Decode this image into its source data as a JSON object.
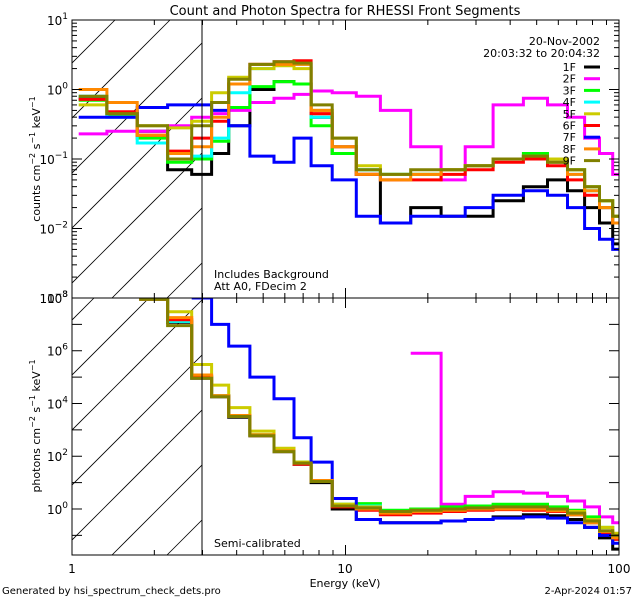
{
  "chart_data": [
    {
      "type": "line",
      "panel": "upper",
      "title": "Count and Photon Spectra for RHESSI Front Segments",
      "xlabel": "Energy (keV)",
      "ylabel": "counts cm^-2 s^-1 keV^-1",
      "xscale": "log",
      "yscale": "log",
      "xlim": [
        1,
        100
      ],
      "ylim": [
        0.001,
        10
      ],
      "x_ticks": [
        "1",
        "10",
        "100"
      ],
      "y_ticks": [
        {
          "value": 10,
          "base": "10",
          "exp": "1"
        },
        {
          "value": 1,
          "base": "10",
          "exp": "0"
        },
        {
          "value": 0.1,
          "base": "10",
          "exp": "−1"
        },
        {
          "value": 0.01,
          "base": "10",
          "exp": "−2"
        },
        {
          "value": 0.001,
          "base": "10",
          "exp": "−3"
        }
      ],
      "shaded_region_below_keV": 3,
      "annotations": [
        "Includes Background",
        "Att A0, FDecim 2"
      ],
      "date": "20-Nov-2002",
      "time_range": "20:03:32 to 20:04:32",
      "legend_position": "top-right",
      "x": [
        1.2,
        1.5,
        2.0,
        2.5,
        3.0,
        3.5,
        4.0,
        5.0,
        6.0,
        7.0,
        8.0,
        10.0,
        12.0,
        15.0,
        20.0,
        25.0,
        30.0,
        40.0,
        50.0,
        60.0,
        70.0,
        80.0,
        90.0,
        100.0
      ],
      "series": [
        {
          "name": "1F",
          "color": "#000000",
          "values": [
            0.75,
            0.45,
            0.25,
            0.07,
            0.06,
            0.12,
            0.3,
            1.0,
            1.3,
            1.2,
            0.4,
            0.12,
            0.06,
            0.012,
            0.02,
            0.015,
            0.015,
            0.025,
            0.04,
            0.05,
            0.035,
            0.02,
            0.012,
            0.006
          ]
        },
        {
          "name": "2F",
          "color": "#ff00ff",
          "values": [
            0.23,
            0.25,
            0.25,
            0.3,
            0.4,
            0.45,
            0.5,
            0.65,
            0.75,
            0.85,
            0.95,
            0.9,
            0.8,
            0.5,
            0.15,
            0.05,
            0.15,
            0.6,
            0.75,
            0.6,
            0.4,
            0.2,
            0.12,
            0.06
          ]
        },
        {
          "name": "3F",
          "color": "#00ff00",
          "values": [
            0.7,
            0.42,
            0.2,
            0.09,
            0.1,
            0.18,
            0.55,
            1.1,
            1.3,
            1.2,
            0.3,
            0.12,
            0.07,
            0.06,
            0.06,
            0.07,
            0.08,
            0.1,
            0.12,
            0.1,
            0.07,
            0.04,
            0.025,
            0.015
          ]
        },
        {
          "name": "4F",
          "color": "#00ffff",
          "values": [
            0.8,
            0.4,
            0.17,
            0.1,
            0.11,
            0.2,
            0.9,
            2.0,
            2.3,
            2.3,
            0.4,
            0.15,
            0.07,
            0.06,
            0.06,
            0.07,
            0.08,
            0.1,
            0.11,
            0.09,
            0.06,
            0.035,
            0.02,
            0.012
          ]
        },
        {
          "name": "5F",
          "color": "#cccc00",
          "values": [
            0.6,
            0.45,
            0.3,
            0.28,
            0.35,
            0.9,
            1.5,
            2.0,
            2.2,
            2.0,
            0.5,
            0.2,
            0.08,
            0.06,
            0.06,
            0.07,
            0.08,
            0.1,
            0.11,
            0.1,
            0.07,
            0.04,
            0.025,
            0.015
          ]
        },
        {
          "name": "6F",
          "color": "#ff0000",
          "values": [
            0.72,
            0.48,
            0.22,
            0.13,
            0.2,
            0.35,
            1.2,
            2.3,
            2.5,
            2.6,
            0.45,
            0.15,
            0.06,
            0.05,
            0.05,
            0.06,
            0.07,
            0.09,
            0.1,
            0.08,
            0.05,
            0.03,
            0.02,
            0.012
          ]
        },
        {
          "name": "7F",
          "color": "#0000ff",
          "values": [
            0.4,
            0.4,
            0.55,
            0.6,
            0.6,
            0.5,
            0.3,
            0.11,
            0.09,
            0.2,
            0.08,
            0.05,
            0.015,
            0.012,
            0.015,
            0.015,
            0.02,
            0.03,
            0.035,
            0.03,
            0.02,
            0.01,
            0.007,
            0.005
          ]
        },
        {
          "name": "8F",
          "color": "#ff8800",
          "values": [
            1.0,
            0.65,
            0.22,
            0.12,
            0.15,
            0.4,
            1.2,
            2.3,
            2.3,
            2.3,
            0.5,
            0.15,
            0.06,
            0.05,
            0.06,
            0.07,
            0.08,
            0.1,
            0.11,
            0.09,
            0.06,
            0.035,
            0.02,
            0.012
          ]
        },
        {
          "name": "9F",
          "color": "#808000",
          "values": [
            0.8,
            0.45,
            0.3,
            0.1,
            0.3,
            0.65,
            1.4,
            2.3,
            2.5,
            2.4,
            0.6,
            0.2,
            0.07,
            0.06,
            0.07,
            0.07,
            0.08,
            0.1,
            0.11,
            0.09,
            0.07,
            0.04,
            0.025,
            0.015
          ]
        }
      ]
    },
    {
      "type": "line",
      "panel": "lower",
      "xlabel": "Energy (keV)",
      "ylabel": "photons cm^-2 s^-1 keV^-1",
      "xscale": "log",
      "yscale": "log",
      "xlim": [
        1,
        100
      ],
      "ylim": [
        0.018,
        100000000
      ],
      "x_ticks": [
        "1",
        "10",
        "100"
      ],
      "y_ticks": [
        {
          "value": 100000000,
          "base": "10",
          "exp": "8"
        },
        {
          "value": 1000000,
          "base": "10",
          "exp": "6"
        },
        {
          "value": 10000,
          "base": "10",
          "exp": "4"
        },
        {
          "value": 100,
          "base": "10",
          "exp": "2"
        },
        {
          "value": 1,
          "base": "10",
          "exp": "0"
        }
      ],
      "shaded_region_below_keV": 3,
      "annotations": [
        "Semi-calibrated"
      ],
      "x": [
        2.0,
        2.5,
        3.0,
        3.5,
        4.0,
        5.0,
        6.0,
        7.0,
        8.0,
        10.0,
        12.0,
        15.0,
        20.0,
        25.0,
        30.0,
        40.0,
        50.0,
        60.0,
        70.0,
        80.0,
        90.0,
        100.0
      ],
      "series": [
        {
          "name": "1F",
          "color": "#000000",
          "values": [
            90000000,
            12000000,
            90000,
            18000,
            3000,
            600,
            150,
            50,
            10,
            1.0,
            0.4,
            0.3,
            0.3,
            0.35,
            0.4,
            0.5,
            0.6,
            0.55,
            0.4,
            0.2,
            0.08,
            0.03
          ]
        },
        {
          "name": "2F",
          "color": "#ff00ff",
          "values": [
            null,
            null,
            null,
            null,
            null,
            null,
            null,
            null,
            null,
            null,
            null,
            null,
            800000,
            1.5,
            3,
            4.5,
            4,
            3,
            2,
            1.2,
            0.5,
            0.3
          ]
        },
        {
          "name": "3F",
          "color": "#00ff00",
          "values": [
            90000000,
            13000000,
            100000,
            20000,
            3500,
            650,
            160,
            60,
            12,
            1.5,
            1.6,
            0.9,
            1.0,
            1.2,
            1.3,
            1.5,
            1.5,
            1.2,
            0.9,
            0.5,
            0.2,
            0.1
          ]
        },
        {
          "name": "4F",
          "color": "#00ffff",
          "values": [
            90000000,
            13000000,
            100000,
            20000,
            3300,
            600,
            150,
            55,
            11,
            1.3,
            1.3,
            0.8,
            0.8,
            0.9,
            1.0,
            1.1,
            1.1,
            0.9,
            0.6,
            0.3,
            0.12,
            0.08
          ]
        },
        {
          "name": "5F",
          "color": "#cccc00",
          "values": [
            95000000,
            30000000,
            300000,
            50000,
            7000,
            900,
            200,
            60,
            12,
            1.5,
            1.2,
            0.8,
            0.9,
            1.0,
            1.0,
            1.1,
            1.1,
            1.0,
            0.8,
            0.4,
            0.2,
            0.12
          ]
        },
        {
          "name": "6F",
          "color": "#ff0000",
          "values": [
            90000000,
            15000000,
            110000,
            19000,
            3200,
            600,
            150,
            50,
            11,
            1.2,
            0.9,
            0.6,
            0.7,
            0.8,
            0.9,
            0.95,
            0.9,
            0.8,
            0.6,
            0.3,
            0.12,
            0.07
          ]
        },
        {
          "name": "7F",
          "color": "#0000ff",
          "values": [
            null,
            null,
            100000000,
            10000000,
            1500000,
            100000,
            15000,
            500,
            60,
            2.5,
            0.4,
            0.3,
            0.3,
            0.35,
            0.4,
            0.45,
            0.5,
            0.45,
            0.3,
            0.2,
            0.1,
            0.05
          ]
        },
        {
          "name": "8F",
          "color": "#ff8800",
          "values": [
            90000000,
            18000000,
            120000,
            20000,
            3500,
            650,
            160,
            55,
            12,
            1.3,
            1.0,
            0.7,
            0.8,
            0.9,
            1.0,
            1.0,
            1.0,
            0.85,
            0.6,
            0.3,
            0.14,
            0.08
          ]
        },
        {
          "name": "9F",
          "color": "#808000",
          "values": [
            90000000,
            9000000,
            90000,
            18000,
            3200,
            600,
            150,
            55,
            11,
            1.3,
            1.1,
            0.8,
            0.9,
            1.0,
            1.1,
            1.2,
            1.2,
            1.0,
            0.7,
            0.35,
            0.15,
            0.1
          ]
        }
      ]
    }
  ],
  "page": {
    "title": "Count and Photon Spectra for RHESSI Front Segments",
    "date": "20-Nov-2002",
    "time_range": "20:03:32 to 20:04:32",
    "upper_ylabel_main": "counts cm",
    "upper_ylabel_exp1": "−2",
    "upper_ylabel_mid": " s",
    "upper_ylabel_exp2": "−1",
    "upper_ylabel_end": " keV",
    "upper_ylabel_exp3": "−1",
    "lower_ylabel_main": "photons cm",
    "lower_ylabel_exp1": "−2",
    "lower_ylabel_mid": " s",
    "lower_ylabel_exp2": "−1",
    "lower_ylabel_end": " keV",
    "lower_ylabel_exp3": "−1",
    "note_background": "Includes Background",
    "note_atten": "Att A0, FDecim 2",
    "note_calib": "Semi-calibrated",
    "xlabel": "Energy (keV)",
    "x_tick_1": "1",
    "x_tick_10": "10",
    "x_tick_100": "100",
    "footer_left": "Generated by hsi_spectrum_check_dets.pro",
    "footer_right": "2-Apr-2024 01:57"
  }
}
